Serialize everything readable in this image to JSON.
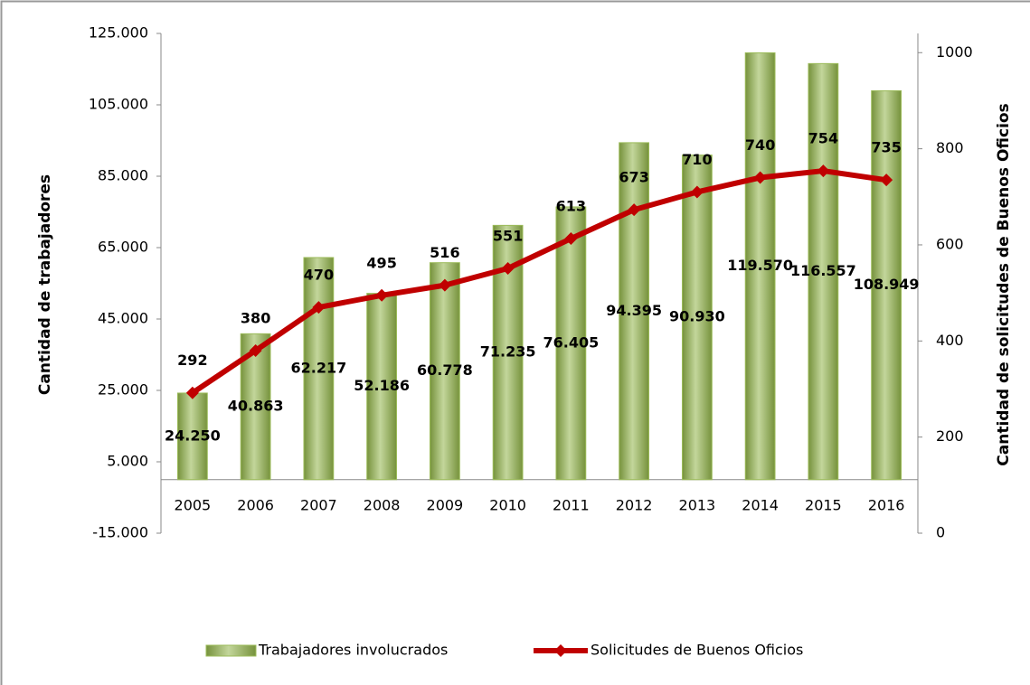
{
  "chart_data": {
    "type": "bar_line",
    "y_label": "Cantidad de trabajadores",
    "y2_label": "Cantidad de solicitudes de Buenos Oficios",
    "categories": [
      "2005",
      "2006",
      "2007",
      "2008",
      "2009",
      "2010",
      "2011",
      "2012",
      "2013",
      "2014",
      "2015",
      "2016"
    ],
    "series": [
      {
        "name": "Trabajadores involucrados",
        "type": "bar",
        "color": "#9bbb59",
        "axis": "y",
        "values": [
          24250,
          40863,
          62217,
          52186,
          60778,
          71235,
          76405,
          94395,
          90930,
          119570,
          116557,
          108949
        ],
        "value_labels": [
          "24.250",
          "40.863",
          "62.217",
          "52.186",
          "60.778",
          "71.235",
          "76.405",
          "94.395",
          "90.930",
          "119.570",
          "116.557",
          "108.949"
        ]
      },
      {
        "name": "Solicitudes de Buenos Oficios",
        "type": "line",
        "color": "#c00000",
        "axis": "y2",
        "values": [
          292,
          380,
          470,
          495,
          516,
          551,
          613,
          673,
          710,
          740,
          754,
          735
        ]
      }
    ],
    "ylim": [
      -15000,
      125000
    ],
    "yticks": [
      {
        "value": -15000,
        "label": "-15.000"
      },
      {
        "value": 5000,
        "label": "5.000"
      },
      {
        "value": 25000,
        "label": "25.000"
      },
      {
        "value": 45000,
        "label": "45.000"
      },
      {
        "value": 65000,
        "label": "65.000"
      },
      {
        "value": 85000,
        "label": "85.000"
      },
      {
        "value": 105000,
        "label": "105.000"
      },
      {
        "value": 125000,
        "label": "125.000"
      }
    ],
    "y2lim": [
      0,
      1040
    ],
    "y2ticks": [
      0,
      200,
      400,
      600,
      800,
      1000
    ],
    "legend": "bottom"
  }
}
